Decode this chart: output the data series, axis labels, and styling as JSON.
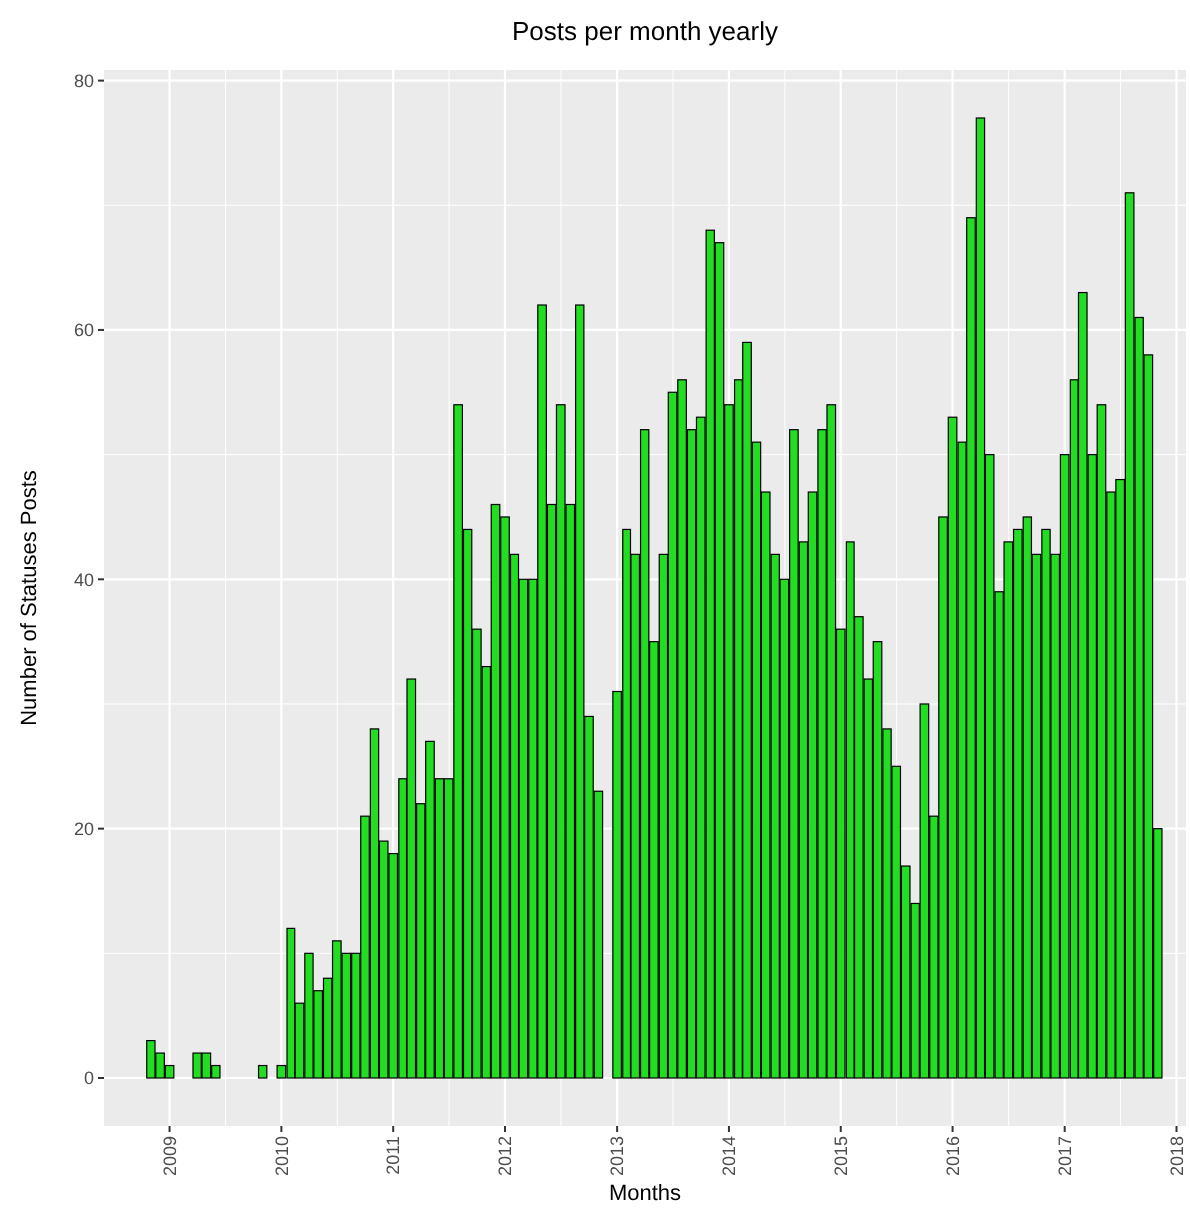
{
  "chart_data": {
    "type": "bar",
    "title": "Posts per month yearly",
    "xlabel": "Months",
    "ylabel": "Number of Statuses Posts",
    "x": [
      "2008-11",
      "2008-12",
      "2009-01",
      "2009-04",
      "2009-05",
      "2009-06",
      "2009-11",
      "2010-01",
      "2010-02",
      "2010-03",
      "2010-04",
      "2010-05",
      "2010-06",
      "2010-07",
      "2010-08",
      "2010-09",
      "2010-10",
      "2010-11",
      "2010-12",
      "2011-01",
      "2011-02",
      "2011-03",
      "2011-04",
      "2011-05",
      "2011-06",
      "2011-07",
      "2011-08",
      "2011-09",
      "2011-10",
      "2011-11",
      "2011-12",
      "2012-01",
      "2012-02",
      "2012-03",
      "2012-04",
      "2012-05",
      "2012-06",
      "2012-07",
      "2012-08",
      "2012-09",
      "2012-10",
      "2012-11",
      "2013-01",
      "2013-02",
      "2013-03",
      "2013-04",
      "2013-05",
      "2013-06",
      "2013-07",
      "2013-08",
      "2013-09",
      "2013-10",
      "2013-11",
      "2013-12",
      "2014-01",
      "2014-02",
      "2014-03",
      "2014-04",
      "2014-05",
      "2014-06",
      "2014-07",
      "2014-08",
      "2014-09",
      "2014-10",
      "2014-11",
      "2014-12",
      "2015-01",
      "2015-02",
      "2015-03",
      "2015-04",
      "2015-05",
      "2015-06",
      "2015-07",
      "2015-08",
      "2015-09",
      "2015-10",
      "2015-11",
      "2015-12",
      "2016-01",
      "2016-02",
      "2016-03",
      "2016-04",
      "2016-05",
      "2016-06",
      "2016-07",
      "2016-08",
      "2016-09",
      "2016-10",
      "2016-11",
      "2016-12",
      "2017-01",
      "2017-02",
      "2017-03",
      "2017-04",
      "2017-05",
      "2017-06",
      "2017-07",
      "2017-08",
      "2017-09",
      "2017-10",
      "2017-11"
    ],
    "values": [
      3,
      2,
      1,
      2,
      2,
      1,
      1,
      1,
      12,
      6,
      10,
      7,
      8,
      11,
      10,
      10,
      21,
      28,
      19,
      18,
      24,
      32,
      22,
      27,
      24,
      24,
      54,
      44,
      36,
      33,
      46,
      45,
      42,
      40,
      40,
      62,
      46,
      54,
      46,
      62,
      29,
      23,
      31,
      44,
      42,
      52,
      35,
      42,
      55,
      56,
      52,
      53,
      68,
      67,
      54,
      56,
      59,
      51,
      47,
      42,
      40,
      52,
      43,
      47,
      52,
      54,
      36,
      43,
      37,
      32,
      35,
      28,
      25,
      17,
      14,
      30,
      21,
      45,
      53,
      51,
      69,
      77,
      50,
      39,
      43,
      44,
      45,
      42,
      44,
      42,
      50,
      56,
      63,
      50,
      54,
      47,
      48,
      71,
      61,
      58,
      20
    ],
    "color": "#22dd22",
    "xlim": [
      "2008-06",
      "2018-02"
    ],
    "xticks": [
      {
        "value": "2009-01",
        "label": "2009"
      },
      {
        "value": "2010-01",
        "label": "2010"
      },
      {
        "value": "2011-01",
        "label": "2011"
      },
      {
        "value": "2012-01",
        "label": "2012"
      },
      {
        "value": "2013-01",
        "label": "2013"
      },
      {
        "value": "2014-01",
        "label": "2014"
      },
      {
        "value": "2015-01",
        "label": "2015"
      },
      {
        "value": "2016-01",
        "label": "2016"
      },
      {
        "value": "2017-01",
        "label": "2017"
      },
      {
        "value": "2018-01",
        "label": "2018"
      }
    ],
    "ylim": [
      -3.85,
      80.85
    ],
    "yticks": [
      0,
      20,
      40,
      60,
      80
    ],
    "grid": true
  }
}
